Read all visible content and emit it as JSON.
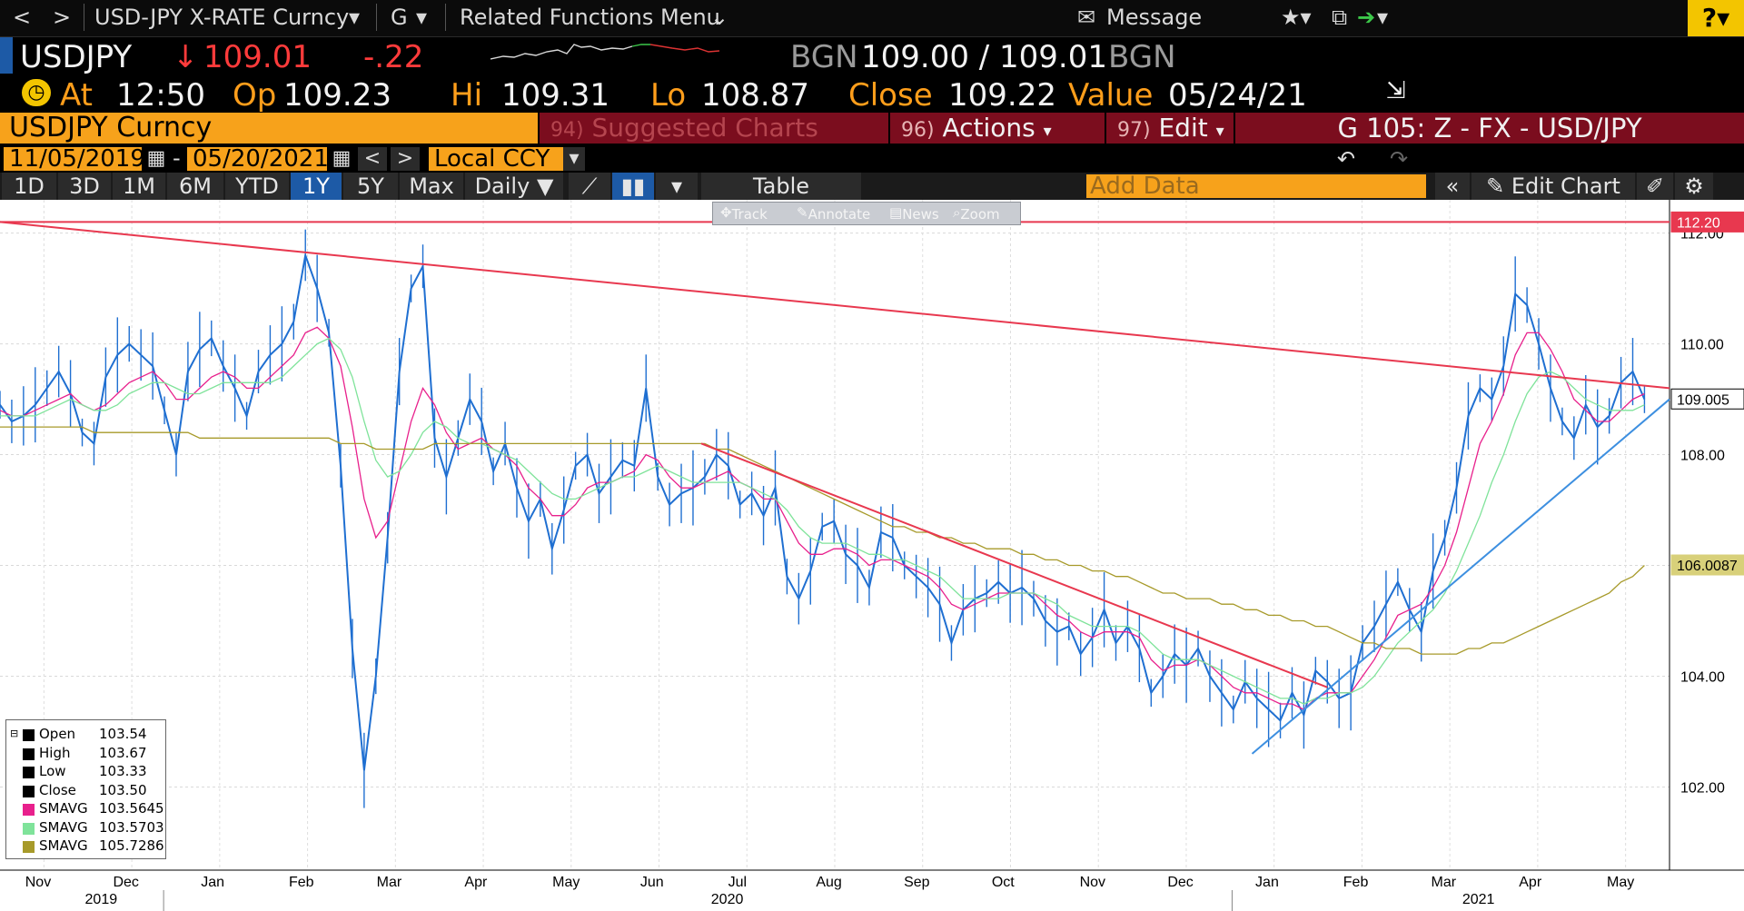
{
  "nav": {
    "back": "<",
    "forward": ">",
    "security": "USD-JPY X-RATE Curncy",
    "g": "G",
    "related": "Related Functions Menu",
    "message": "Message",
    "help": "?"
  },
  "ticker": {
    "symbol": "USDJPY",
    "last": "109.01",
    "change": "-.22",
    "src1": "BGN",
    "bid_ask": "109.00 / 109.01",
    "src2": "BGN"
  },
  "stats": {
    "at_label": "At",
    "at_time": "12:50",
    "op_label": "Op",
    "op": "109.23",
    "hi_label": "Hi",
    "hi": "109.31",
    "lo_label": "Lo",
    "lo": "108.87",
    "close_label": "Close",
    "close": "109.22",
    "value_label": "Value",
    "value_date": "05/24/21"
  },
  "secbar": {
    "name": "USDJPY Curncy",
    "suggest_num": "94)",
    "suggest": "Suggested Charts",
    "actions_num": "96)",
    "actions": "Actions",
    "edit_num": "97)",
    "edit": "Edit",
    "g_label": "G 105: Z - FX - USD/JPY"
  },
  "dates": {
    "start": "11/05/2019",
    "end": "05/20/2021",
    "dash": "-",
    "ccy": "Local CCY"
  },
  "range": {
    "buttons": [
      "1D",
      "3D",
      "1M",
      "6M",
      "YTD",
      "1Y",
      "5Y",
      "Max"
    ],
    "active": "1Y",
    "freq": "Daily",
    "table": "Table",
    "add_data": "Add Data",
    "edit_chart": "Edit Chart"
  },
  "tools": [
    "Track",
    "Annotate",
    "News",
    "Zoom"
  ],
  "legend": {
    "rows": [
      {
        "name": "Open",
        "value": "103.54",
        "color": "#000000"
      },
      {
        "name": "High",
        "value": "103.67",
        "color": "#000000"
      },
      {
        "name": "Low",
        "value": "103.33",
        "color": "#000000"
      },
      {
        "name": "Close",
        "value": "103.50",
        "color": "#000000"
      },
      {
        "name": "SMAVG",
        "value": "103.5645",
        "color": "#e8208c"
      },
      {
        "name": "SMAVG",
        "value": "103.5703",
        "color": "#7fe39a"
      },
      {
        "name": "SMAVG",
        "value": "105.7286",
        "color": "#a79a2a"
      }
    ]
  },
  "chart_data": {
    "type": "line",
    "ylim": [
      100.5,
      112.6
    ],
    "yticks": [
      102,
      104,
      106,
      108,
      110,
      112
    ],
    "ytick_labels": [
      "102.00",
      "104.00",
      "106.00",
      "108.00",
      "110.00",
      "112.00"
    ],
    "month_labels": [
      "Nov",
      "Dec",
      "Jan",
      "Feb",
      "Mar",
      "Apr",
      "May",
      "Jun",
      "Jul",
      "Aug",
      "Sep",
      "Oct",
      "Nov",
      "Dec",
      "Jan",
      "Feb",
      "Mar",
      "Apr",
      "May"
    ],
    "year_labels": [
      "2019",
      "2020",
      "2021"
    ],
    "price_tags": [
      {
        "label": "112.20",
        "value": 112.2,
        "color": "#e8384f"
      },
      {
        "label": "109.005",
        "value": 109.005,
        "color": "#ffffff"
      },
      {
        "label": "106.0087",
        "value": 106.0087,
        "color": "#d8d07a"
      }
    ],
    "series": [
      {
        "name": "USDJPY",
        "color": "#1f6fd1",
        "values": [
          108.9,
          108.6,
          108.7,
          108.9,
          109.2,
          109.5,
          109.1,
          108.4,
          108.2,
          109.4,
          109.8,
          110.0,
          109.8,
          109.6,
          108.8,
          108.0,
          109.5,
          109.9,
          110.1,
          109.6,
          109.2,
          108.7,
          109.5,
          109.8,
          110.0,
          110.4,
          111.6,
          111.0,
          110.2,
          107.8,
          104.5,
          102.3,
          104.0,
          106.5,
          109.5,
          111.0,
          111.4,
          108.3,
          107.6,
          108.3,
          109.0,
          108.6,
          107.7,
          108.2,
          107.4,
          106.8,
          107.2,
          106.3,
          107.0,
          107.8,
          108.0,
          107.3,
          107.6,
          107.9,
          107.8,
          109.2,
          107.6,
          107.1,
          107.3,
          107.4,
          107.6,
          108.0,
          107.8,
          107.1,
          107.3,
          106.9,
          107.4,
          105.8,
          105.4,
          105.9,
          106.7,
          106.8,
          106.2,
          106.0,
          105.6,
          106.6,
          106.5,
          106.0,
          105.8,
          105.6,
          105.3,
          104.6,
          105.2,
          105.4,
          105.5,
          105.7,
          105.5,
          105.6,
          105.4,
          105.0,
          104.8,
          104.9,
          104.4,
          104.7,
          105.2,
          104.6,
          104.9,
          104.5,
          103.7,
          104.0,
          104.4,
          104.2,
          104.5,
          104.0,
          103.7,
          103.4,
          103.9,
          103.6,
          103.4,
          103.2,
          103.7,
          103.3,
          104.1,
          103.9,
          103.6,
          103.7,
          104.6,
          104.9,
          105.3,
          105.7,
          105.2,
          104.8,
          105.9,
          106.5,
          107.4,
          108.7,
          109.2,
          109.0,
          109.6,
          110.9,
          110.7,
          110.0,
          109.2,
          108.6,
          108.3,
          108.9,
          108.5,
          108.7,
          109.3,
          109.5,
          109.0
        ],
        "x_start": "11/05/2019",
        "x_end": "05/20/2021"
      },
      {
        "name": "SMAVG",
        "color": "#e8208c",
        "values": [
          108.8,
          108.7,
          108.7,
          108.8,
          108.9,
          109.0,
          109.1,
          108.9,
          108.8,
          108.9,
          109.1,
          109.3,
          109.4,
          109.5,
          109.3,
          109.0,
          109.0,
          109.2,
          109.4,
          109.5,
          109.4,
          109.2,
          109.2,
          109.4,
          109.6,
          109.8,
          110.2,
          110.3,
          110.1,
          109.6,
          108.5,
          107.2,
          106.5,
          106.8,
          107.7,
          108.6,
          109.2,
          108.9,
          108.4,
          108.1,
          108.2,
          108.3,
          108.1,
          108.0,
          107.8,
          107.4,
          107.2,
          106.9,
          106.9,
          107.1,
          107.4,
          107.5,
          107.5,
          107.6,
          107.7,
          108.0,
          107.9,
          107.6,
          107.4,
          107.4,
          107.5,
          107.6,
          107.7,
          107.5,
          107.4,
          107.2,
          107.2,
          106.8,
          106.4,
          106.2,
          106.2,
          106.3,
          106.3,
          106.2,
          106.0,
          106.1,
          106.1,
          106.0,
          105.9,
          105.8,
          105.6,
          105.3,
          105.2,
          105.3,
          105.4,
          105.5,
          105.5,
          105.5,
          105.5,
          105.3,
          105.1,
          105.0,
          104.8,
          104.7,
          104.8,
          104.8,
          104.8,
          104.7,
          104.3,
          104.1,
          104.2,
          104.2,
          104.3,
          104.2,
          104.0,
          103.8,
          103.7,
          103.7,
          103.6,
          103.5,
          103.5,
          103.4,
          103.6,
          103.7,
          103.7,
          103.7,
          104.0,
          104.3,
          104.7,
          105.1,
          105.2,
          105.3,
          105.6,
          106.0,
          106.6,
          107.4,
          108.2,
          108.6,
          109.1,
          109.8,
          110.2,
          110.2,
          109.9,
          109.5,
          109.0,
          108.8,
          108.6,
          108.6,
          108.8,
          109.0,
          109.1
        ]
      },
      {
        "name": "SMAVG",
        "color": "#7fe39a",
        "values": [
          108.7,
          108.7,
          108.7,
          108.7,
          108.8,
          108.9,
          109.0,
          108.9,
          108.8,
          108.8,
          108.9,
          109.1,
          109.2,
          109.3,
          109.3,
          109.2,
          109.1,
          109.1,
          109.2,
          109.3,
          109.3,
          109.3,
          109.3,
          109.3,
          109.4,
          109.6,
          109.8,
          110.0,
          110.1,
          109.9,
          109.4,
          108.6,
          107.9,
          107.6,
          107.7,
          108.0,
          108.4,
          108.6,
          108.5,
          108.3,
          108.2,
          108.2,
          108.1,
          108.0,
          107.9,
          107.7,
          107.5,
          107.3,
          107.2,
          107.2,
          107.3,
          107.4,
          107.5,
          107.6,
          107.6,
          107.7,
          107.8,
          107.7,
          107.6,
          107.5,
          107.5,
          107.5,
          107.5,
          107.5,
          107.4,
          107.3,
          107.2,
          107.0,
          106.7,
          106.5,
          106.4,
          106.4,
          106.4,
          106.3,
          106.2,
          106.2,
          106.1,
          106.1,
          106.0,
          105.9,
          105.8,
          105.6,
          105.4,
          105.4,
          105.4,
          105.4,
          105.5,
          105.5,
          105.5,
          105.4,
          105.3,
          105.1,
          105.0,
          104.9,
          104.9,
          104.9,
          104.9,
          104.8,
          104.6,
          104.4,
          104.3,
          104.3,
          104.3,
          104.2,
          104.1,
          104.0,
          103.9,
          103.8,
          103.7,
          103.6,
          103.6,
          103.5,
          103.6,
          103.6,
          103.7,
          103.7,
          103.8,
          104.0,
          104.3,
          104.6,
          104.8,
          105.0,
          105.2,
          105.5,
          105.9,
          106.4,
          106.9,
          107.5,
          108.0,
          108.6,
          109.1,
          109.4,
          109.5,
          109.4,
          109.2,
          109.0,
          108.9,
          108.8,
          108.8,
          108.8,
          108.9
        ]
      },
      {
        "name": "SMAVG",
        "color": "#a79a2a",
        "values": [
          108.5,
          108.5,
          108.5,
          108.5,
          108.5,
          108.5,
          108.5,
          108.5,
          108.4,
          108.4,
          108.4,
          108.4,
          108.4,
          108.4,
          108.4,
          108.4,
          108.4,
          108.3,
          108.3,
          108.3,
          108.3,
          108.3,
          108.3,
          108.3,
          108.3,
          108.3,
          108.3,
          108.3,
          108.3,
          108.2,
          108.2,
          108.2,
          108.1,
          108.1,
          108.1,
          108.1,
          108.1,
          108.2,
          108.2,
          108.2,
          108.2,
          108.2,
          108.2,
          108.2,
          108.2,
          108.2,
          108.2,
          108.2,
          108.2,
          108.2,
          108.2,
          108.2,
          108.2,
          108.2,
          108.2,
          108.2,
          108.2,
          108.2,
          108.2,
          108.2,
          108.2,
          108.1,
          108.1,
          108.0,
          107.9,
          107.8,
          107.7,
          107.6,
          107.5,
          107.4,
          107.3,
          107.2,
          107.1,
          107.0,
          106.9,
          106.8,
          106.7,
          106.7,
          106.6,
          106.6,
          106.5,
          106.5,
          106.4,
          106.4,
          106.3,
          106.3,
          106.3,
          106.2,
          106.2,
          106.1,
          106.1,
          106.0,
          106.0,
          105.9,
          105.9,
          105.8,
          105.8,
          105.7,
          105.6,
          105.5,
          105.5,
          105.4,
          105.4,
          105.4,
          105.3,
          105.3,
          105.2,
          105.2,
          105.1,
          105.1,
          105.0,
          105.0,
          104.9,
          104.9,
          104.8,
          104.7,
          104.6,
          104.6,
          104.5,
          104.5,
          104.5,
          104.4,
          104.4,
          104.4,
          104.4,
          104.5,
          104.5,
          104.6,
          104.6,
          104.7,
          104.8,
          104.9,
          105.0,
          105.1,
          105.2,
          105.3,
          105.4,
          105.5,
          105.7,
          105.8,
          106.0
        ]
      }
    ],
    "trendlines": [
      {
        "name": "resistance-long",
        "color": "#e8384f",
        "from": [
          0,
          112.2
        ],
        "to": [
          1.0,
          109.2
        ]
      },
      {
        "name": "resistance-short",
        "color": "#e8384f",
        "from": [
          0.42,
          108.2
        ],
        "to": [
          0.795,
          103.8
        ]
      },
      {
        "name": "support",
        "color": "#3d8fe0",
        "from": [
          0.75,
          102.6
        ],
        "to": [
          1.0,
          109.0
        ]
      },
      {
        "name": "horizontal",
        "color": "#e8384f",
        "from": [
          0,
          112.2
        ],
        "to": [
          1.0,
          112.2
        ]
      }
    ],
    "grid": true
  }
}
